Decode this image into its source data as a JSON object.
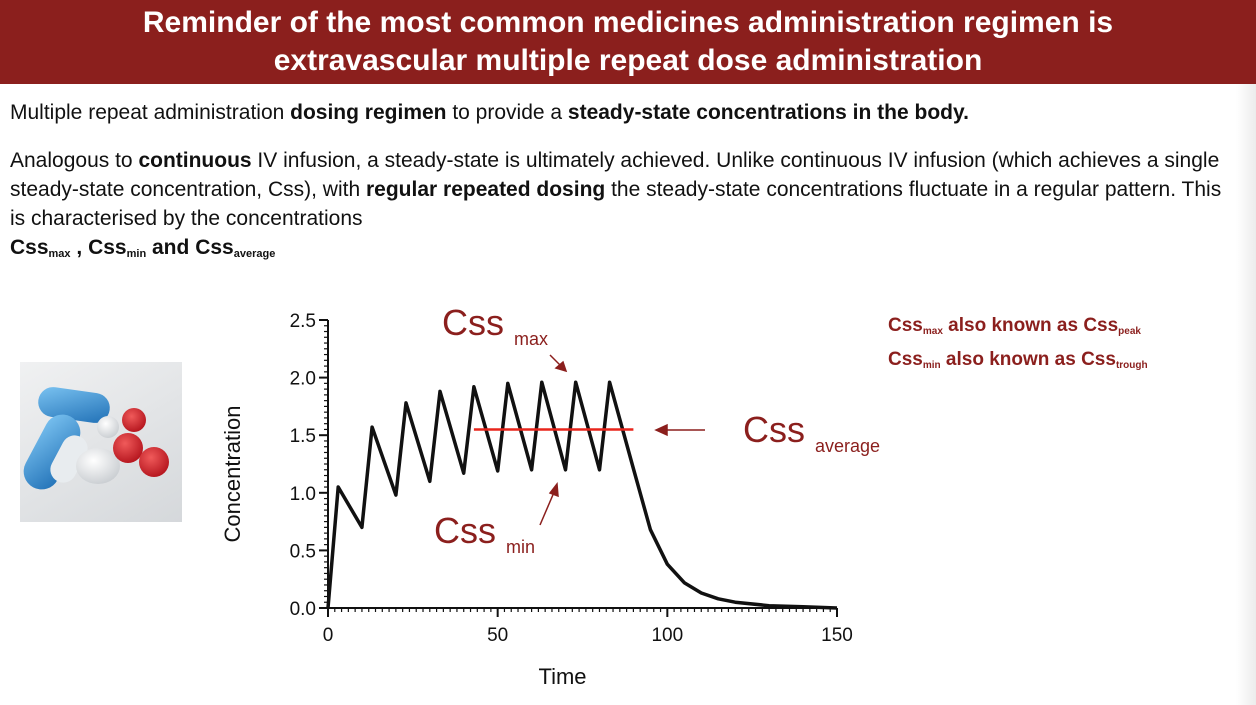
{
  "slide": {
    "title_line1": "Reminder of the most common medicines administration regimen is",
    "title_line2": "extravascular multiple repeat dose administration",
    "p1": {
      "t1": "Multiple repeat administration ",
      "b1": "dosing regimen",
      "t2": "  to provide a ",
      "b2": "steady-state concentrations in the body."
    },
    "p2": {
      "t1": "Analogous to ",
      "b1": "continuous",
      "t2": " IV infusion, a steady-state is ultimately achieved. Unlike continuous IV infusion (which achieves a single steady-state concentration, Css), with ",
      "b2": "regular repeated dosing",
      "t3": " the steady-state concentrations fluctuate in a regular pattern. This  is characterised by the concentrations ",
      "css1": "Css",
      "sub1": "max",
      "sep1": " , ",
      "css2": "Css",
      "sub2": "min",
      "sep2": "  and ",
      "css3": "Css",
      "sub3": "average"
    },
    "aka": {
      "line1_a": "Css",
      "line1_a_sub": "max",
      "line1_mid": " also known as ",
      "line1_b": "Css",
      "line1_b_sub": "peak",
      "line2_a": "Css",
      "line2_a_sub": "min",
      "line2_mid": " also known as ",
      "line2_b": "Css",
      "line2_b_sub": "trough"
    },
    "annotations": {
      "css_max": "Css",
      "css_max_sub": "max",
      "css_min": "Css",
      "css_min_sub": "min",
      "css_avg": "Css",
      "css_avg_sub": "average"
    },
    "colors": {
      "accent": "#8b1f1d",
      "avg_line": "#e8251c"
    },
    "photo_icon": "pills-photo"
  },
  "chart_data": {
    "type": "line",
    "xlabel": "Time",
    "ylabel": "Concentration",
    "xlim": [
      0,
      150
    ],
    "ylim": [
      0,
      2.5
    ],
    "x_ticks": [
      0,
      50,
      100,
      150
    ],
    "y_ticks": [
      0.0,
      0.5,
      1.0,
      1.5,
      2.0,
      2.5
    ],
    "x_tick_labels": [
      "0",
      "50",
      "100",
      "150"
    ],
    "y_tick_labels": [
      "0.0",
      "0.5",
      "1.0",
      "1.5",
      "2.0",
      "2.5"
    ],
    "series": [
      {
        "x": [
          0,
          3,
          10,
          13,
          20,
          23,
          30,
          33,
          40,
          43,
          50,
          53,
          60,
          63,
          70,
          73,
          80,
          83,
          90,
          95,
          100,
          105,
          110,
          115,
          120,
          130,
          140,
          150
        ],
        "y": [
          0,
          1.05,
          0.7,
          1.57,
          0.98,
          1.78,
          1.1,
          1.88,
          1.17,
          1.92,
          1.19,
          1.95,
          1.2,
          1.96,
          1.2,
          1.96,
          1.2,
          1.96,
          1.21,
          0.68,
          0.38,
          0.22,
          0.13,
          0.08,
          0.05,
          0.02,
          0.01,
          0.0
        ]
      }
    ],
    "average_line": {
      "x": [
        43,
        90
      ],
      "y": 1.55
    },
    "grid": false
  }
}
